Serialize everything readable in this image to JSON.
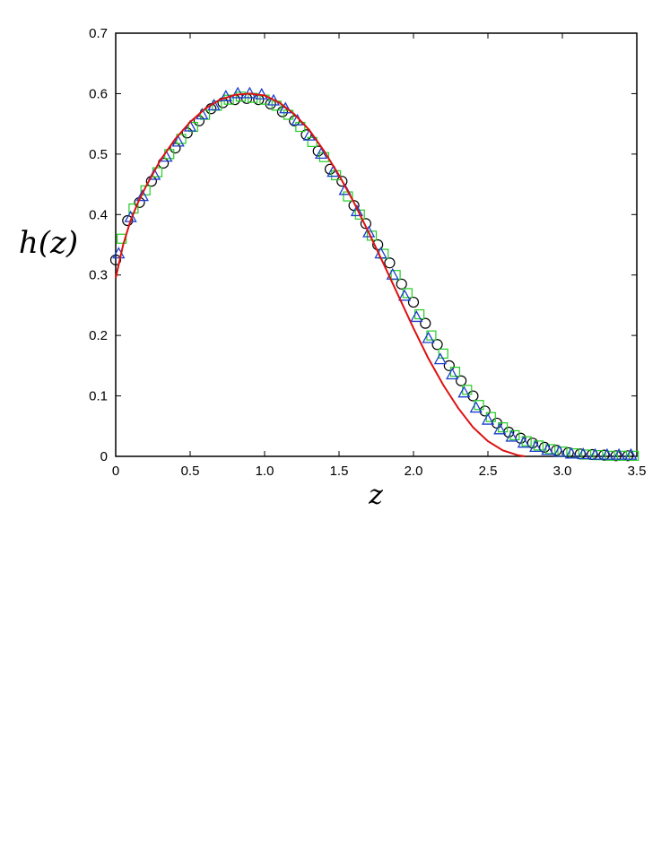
{
  "chart_data": {
    "type": "scatter",
    "title": "",
    "xlabel": "z",
    "ylabel": "h(z)",
    "xlim": [
      0,
      3.5
    ],
    "ylim": [
      0,
      0.7
    ],
    "x_ticks": [
      "0",
      "0.5",
      "1.0",
      "1.5",
      "2.0",
      "2.5",
      "3.0",
      "3.5"
    ],
    "y_ticks": [
      "0",
      "0.1",
      "0.2",
      "0.3",
      "0.4",
      "0.5",
      "0.6",
      "0.7"
    ],
    "grid": false,
    "legend": "none",
    "series": [
      {
        "marker": "circle",
        "color": "#000000",
        "x": [
          0.0,
          0.08,
          0.16,
          0.24,
          0.32,
          0.4,
          0.48,
          0.56,
          0.64,
          0.72,
          0.8,
          0.88,
          0.96,
          1.04,
          1.12,
          1.2,
          1.28,
          1.36,
          1.44,
          1.52,
          1.6,
          1.68,
          1.76,
          1.84,
          1.92,
          2.0,
          2.08,
          2.16,
          2.24,
          2.32,
          2.4,
          2.48,
          2.56,
          2.64,
          2.72,
          2.8,
          2.88,
          2.96,
          3.04,
          3.12,
          3.2,
          3.28,
          3.36,
          3.44
        ],
        "y": [
          0.325,
          0.39,
          0.42,
          0.455,
          0.485,
          0.51,
          0.535,
          0.555,
          0.575,
          0.585,
          0.59,
          0.592,
          0.59,
          0.583,
          0.57,
          0.555,
          0.532,
          0.505,
          0.475,
          0.455,
          0.415,
          0.385,
          0.35,
          0.32,
          0.285,
          0.255,
          0.22,
          0.185,
          0.15,
          0.125,
          0.1,
          0.075,
          0.055,
          0.04,
          0.03,
          0.022,
          0.015,
          0.01,
          0.006,
          0.004,
          0.003,
          0.002,
          0.001,
          0.001
        ]
      },
      {
        "marker": "square",
        "color": "#22cc22",
        "x": [
          0.04,
          0.12,
          0.2,
          0.28,
          0.36,
          0.44,
          0.52,
          0.6,
          0.68,
          0.76,
          0.84,
          0.92,
          1.0,
          1.08,
          1.16,
          1.24,
          1.32,
          1.4,
          1.48,
          1.56,
          1.64,
          1.72,
          1.8,
          1.88,
          1.96,
          2.04,
          2.12,
          2.2,
          2.28,
          2.36,
          2.44,
          2.52,
          2.6,
          2.68,
          2.76,
          2.84,
          2.92,
          3.0,
          3.08,
          3.16,
          3.24,
          3.32,
          3.4,
          3.48
        ],
        "y": [
          0.36,
          0.41,
          0.44,
          0.47,
          0.5,
          0.525,
          0.545,
          0.565,
          0.58,
          0.59,
          0.595,
          0.593,
          0.59,
          0.58,
          0.565,
          0.545,
          0.52,
          0.495,
          0.465,
          0.43,
          0.4,
          0.365,
          0.335,
          0.3,
          0.27,
          0.235,
          0.2,
          0.17,
          0.14,
          0.11,
          0.085,
          0.065,
          0.048,
          0.035,
          0.025,
          0.018,
          0.012,
          0.008,
          0.005,
          0.003,
          0.002,
          0.001,
          0.001,
          0.001
        ]
      },
      {
        "marker": "triangle",
        "color": "#1a3fcc",
        "x": [
          0.02,
          0.1,
          0.18,
          0.26,
          0.34,
          0.42,
          0.5,
          0.58,
          0.66,
          0.74,
          0.82,
          0.9,
          0.98,
          1.06,
          1.14,
          1.22,
          1.3,
          1.38,
          1.46,
          1.54,
          1.62,
          1.7,
          1.78,
          1.86,
          1.94,
          2.02,
          2.1,
          2.18,
          2.26,
          2.34,
          2.42,
          2.5,
          2.58,
          2.66,
          2.74,
          2.82,
          2.9,
          2.98,
          3.06,
          3.14,
          3.22,
          3.3,
          3.38,
          3.46
        ],
        "y": [
          0.335,
          0.395,
          0.43,
          0.465,
          0.495,
          0.52,
          0.545,
          0.565,
          0.58,
          0.595,
          0.6,
          0.6,
          0.598,
          0.588,
          0.575,
          0.555,
          0.53,
          0.5,
          0.47,
          0.44,
          0.405,
          0.37,
          0.335,
          0.3,
          0.265,
          0.23,
          0.195,
          0.16,
          0.135,
          0.105,
          0.08,
          0.06,
          0.044,
          0.032,
          0.022,
          0.015,
          0.01,
          0.007,
          0.004,
          0.003,
          0.002,
          0.002,
          0.002,
          0.002
        ]
      },
      {
        "marker": "line",
        "color": "#dd1111",
        "x": [
          0.0,
          0.05,
          0.1,
          0.15,
          0.2,
          0.3,
          0.4,
          0.5,
          0.6,
          0.7,
          0.8,
          0.9,
          1.0,
          1.1,
          1.2,
          1.3,
          1.4,
          1.5,
          1.6,
          1.7,
          1.8,
          1.9,
          2.0,
          2.1,
          2.2,
          2.3,
          2.4,
          2.5,
          2.6,
          2.7,
          2.75
        ],
        "y": [
          0.295,
          0.35,
          0.39,
          0.42,
          0.445,
          0.49,
          0.525,
          0.553,
          0.575,
          0.59,
          0.598,
          0.6,
          0.597,
          0.585,
          0.566,
          0.54,
          0.505,
          0.465,
          0.42,
          0.37,
          0.318,
          0.265,
          0.212,
          0.162,
          0.118,
          0.08,
          0.048,
          0.025,
          0.01,
          0.002,
          0.0
        ]
      }
    ]
  }
}
